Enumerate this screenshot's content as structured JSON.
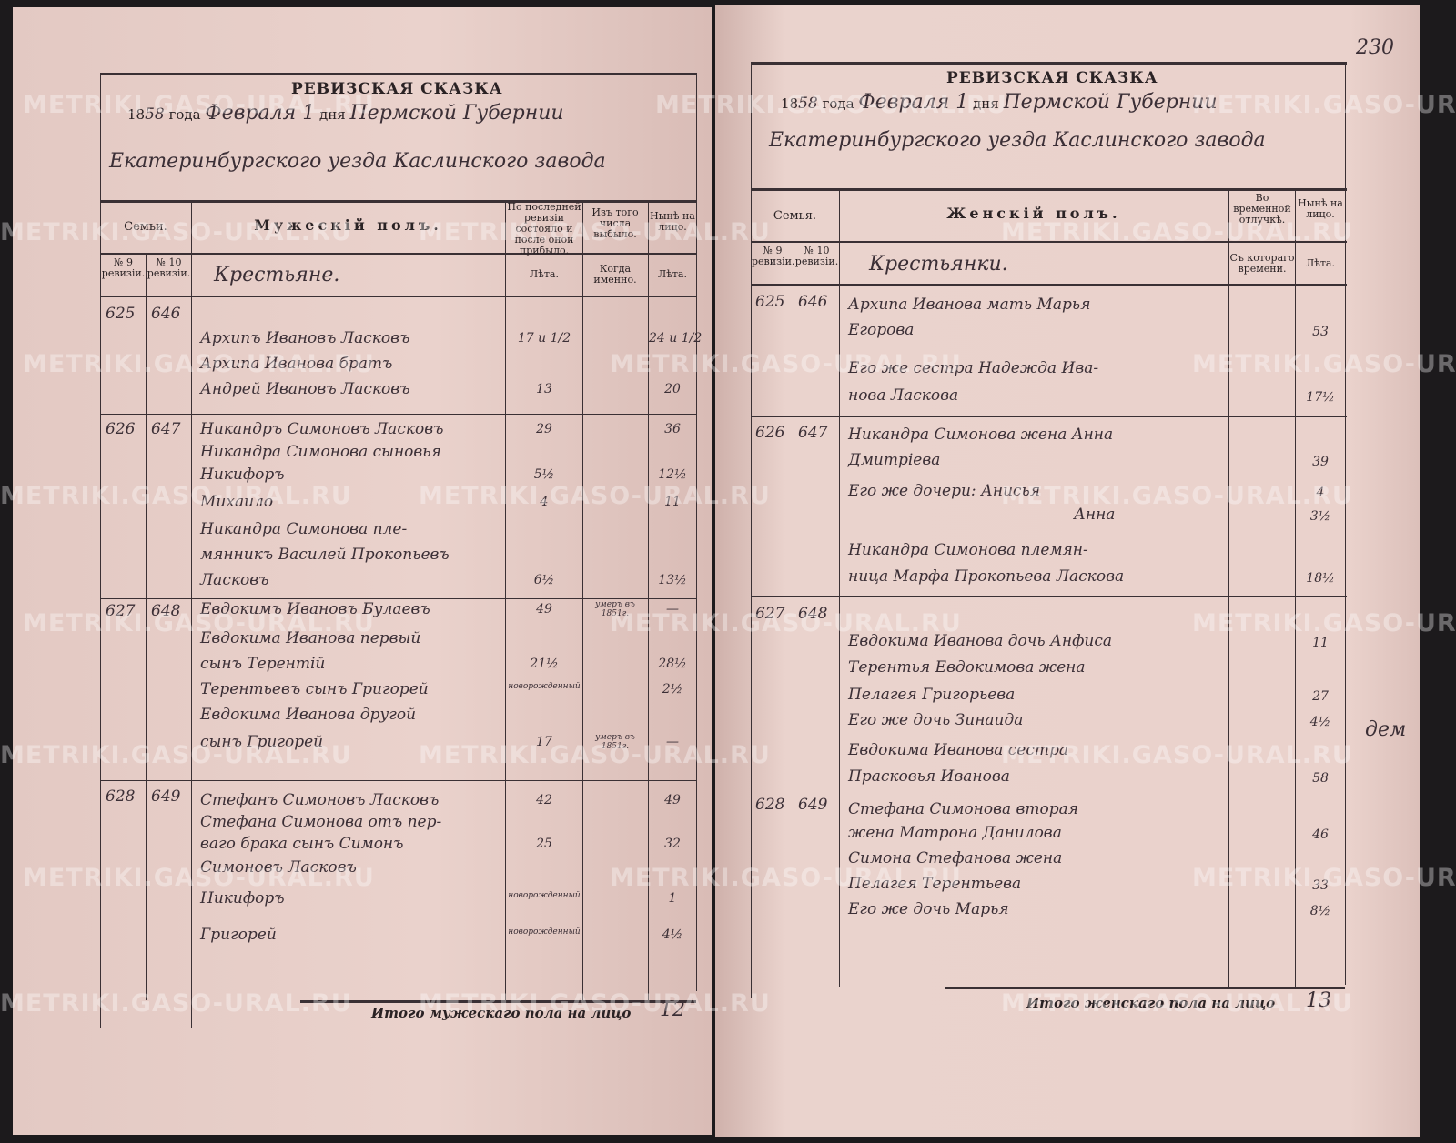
{
  "watermark": "METRIKI.GASO-URAL.RU",
  "left": {
    "title": "РЕВИЗСКАЯ СКАЗКА",
    "date_line": {
      "year_prefix": "18",
      "year_hand": "58",
      "year_word": "года",
      "month": "Февраля 1",
      "day_word": "дня",
      "province": "Пермской Губернии"
    },
    "district_line": "Екатеринбургского уезда Каслинского завода",
    "headers": {
      "family": "Семьи.",
      "section": "Мужескій полъ.",
      "last_rev": "По последней ревизіи состояло и после оной прибыло.",
      "left_out": "Изъ того числа выбыло.",
      "now": "Нынѣ на лицо.",
      "rev9": "№ 9 ревизіи.",
      "rev10": "№ 10 ревизіи.",
      "estate": "Крестьяне.",
      "years": "Лѣта.",
      "when": "Когда именно.",
      "years2": "Лѣта."
    },
    "families": [
      {
        "n9": "625",
        "n10": "646"
      },
      {
        "n9": "626",
        "n10": "647"
      },
      {
        "n9": "627",
        "n10": "648"
      },
      {
        "n9": "628",
        "n10": "649"
      }
    ],
    "rows": [
      {
        "name": "Архипъ Ивановъ Ласковъ",
        "age": "17 и 1/2",
        "when": "",
        "now": "24 и 1/2"
      },
      {
        "name": "Архипа Иванова братъ",
        "age": "",
        "when": "",
        "now": ""
      },
      {
        "name": "Андрей Ивановъ Ласковъ",
        "age": "13",
        "when": "",
        "now": "20"
      },
      {
        "name": "Никандръ Симоновъ Ласковъ",
        "age": "29",
        "when": "",
        "now": "36"
      },
      {
        "name": "Никандра Симонова сыновья",
        "age": "",
        "when": "",
        "now": ""
      },
      {
        "name": "Никифоръ",
        "age": "5½",
        "when": "",
        "now": "12½"
      },
      {
        "name": "Михаило",
        "age": "4",
        "when": "",
        "now": "11"
      },
      {
        "name": "Никандра Симонова пле-",
        "age": "",
        "when": "",
        "now": ""
      },
      {
        "name": "мянникъ Василей Прокопьевъ",
        "age": "",
        "when": "",
        "now": ""
      },
      {
        "name": "Ласковъ",
        "age": "6½",
        "when": "",
        "now": "13½"
      },
      {
        "name": "Евдокимъ Ивановъ Булаевъ",
        "age": "49",
        "when": "умеръ въ 1851г.",
        "now": "—"
      },
      {
        "name": "Евдокима Иванова первый",
        "age": "",
        "when": "",
        "now": ""
      },
      {
        "name": "сынъ Терентій",
        "age": "21½",
        "when": "",
        "now": "28½"
      },
      {
        "name": "Терентьевъ сынъ Григорей",
        "age": "новорожденный",
        "when": "",
        "now": "2½"
      },
      {
        "name": "Евдокима Иванова другой",
        "age": "",
        "when": "",
        "now": ""
      },
      {
        "name": "сынъ Григорей",
        "age": "17",
        "when": "умеръ въ 1851г.",
        "now": "—"
      },
      {
        "name": "Стефанъ Симоновъ Ласковъ",
        "age": "42",
        "when": "",
        "now": "49"
      },
      {
        "name": "Стефана Симонова отъ пер-",
        "age": "",
        "when": "",
        "now": ""
      },
      {
        "name": "ваго брака сынъ Симонъ",
        "age": "25",
        "when": "",
        "now": "32"
      },
      {
        "name": "Симоновъ Ласковъ",
        "age": "",
        "when": "",
        "now": ""
      },
      {
        "name": "Никифоръ",
        "age": "новорожденный",
        "when": "",
        "now": "1"
      },
      {
        "name": "Григорей",
        "age": "новорожденный",
        "when": "",
        "now": "4½"
      }
    ],
    "total_label": "Итого мужескаго пола на лицо",
    "total_value": "12"
  },
  "right": {
    "page_number": "230",
    "title": "РЕВИЗСКАЯ СКАЗКА",
    "date_line": {
      "year_prefix": "18",
      "year_hand": "58",
      "year_word": "года",
      "month": "Февраля 1",
      "day_word": "дня",
      "province": "Пермской Губернии"
    },
    "district_line": "Екатеринбургского уезда Каслинского завода",
    "headers": {
      "family": "Семья.",
      "section": "Женскій полъ.",
      "absence": "Во временной отлучкѣ.",
      "now": "Нынѣ на лицо.",
      "rev9": "№ 9 ревизіи.",
      "rev10": "№ 10 ревизіи.",
      "estate": "Крестьянки.",
      "since": "Съ котораго времени.",
      "years": "Лѣта."
    },
    "families": [
      {
        "n9": "625",
        "n10": "646"
      },
      {
        "n9": "626",
        "n10": "647"
      },
      {
        "n9": "627",
        "n10": "648"
      },
      {
        "n9": "628",
        "n10": "649"
      }
    ],
    "rows": [
      {
        "name": "Архипа Иванова мать Марья",
        "now": ""
      },
      {
        "name": "Егорова",
        "now": "53"
      },
      {
        "name": "Его же сестра Надежда Ива-",
        "now": ""
      },
      {
        "name": "нова Ласкова",
        "now": "17½"
      },
      {
        "name": "Никандра Симонова жена Анна",
        "now": ""
      },
      {
        "name": "Дмитріева",
        "now": "39"
      },
      {
        "name": "Его же дочери: Анисья",
        "now": "4"
      },
      {
        "name": "Анна",
        "now": "3½"
      },
      {
        "name": "Никандра Симонова племян-",
        "now": ""
      },
      {
        "name": "ница Марфа Прокопьева Ласкова",
        "now": "18½"
      },
      {
        "name": "Евдокима Иванова дочь Анфиса",
        "now": "11"
      },
      {
        "name": "Терентья Евдокимова жена",
        "now": ""
      },
      {
        "name": "Пелагея Григорьева",
        "now": "27"
      },
      {
        "name": "Его же дочь Зинаида",
        "now": "4½"
      },
      {
        "name": "Евдокима Иванова сестра",
        "now": ""
      },
      {
        "name": "Прасковья Иванова",
        "now": "58"
      },
      {
        "name": "Стефана Симонова вторая",
        "now": ""
      },
      {
        "name": "жена Матрона Данилова",
        "now": "46"
      },
      {
        "name": "Симона Стефанова жена",
        "now": ""
      },
      {
        "name": "Пелагея Терентьева",
        "now": "33"
      },
      {
        "name": "Его же дочь Марья",
        "now": "8½"
      }
    ],
    "margin_note": "дем",
    "total_label": "Итого женскаго пола на лицо",
    "total_value": "13"
  }
}
